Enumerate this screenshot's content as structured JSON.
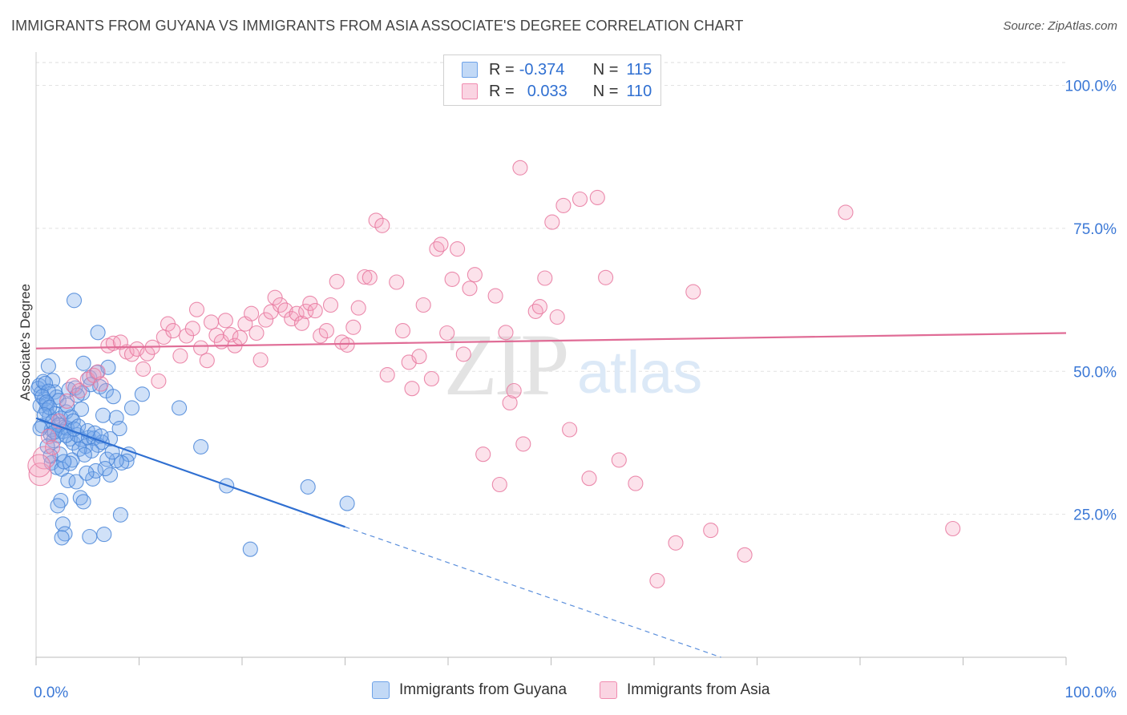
{
  "title": "IMMIGRANTS FROM GUYANA VS IMMIGRANTS FROM ASIA ASSOCIATE'S DEGREE CORRELATION CHART",
  "source": "Source: ZipAtlas.com",
  "watermark": {
    "zip": "ZIP",
    "atlas": "atlas"
  },
  "legend": {
    "rows": [
      {
        "r_label": "R =",
        "r_value": "-0.374",
        "n_label": "N =",
        "n_value": "115",
        "color": "#6fa3e8"
      },
      {
        "r_label": "R =",
        "r_value": "0.033",
        "n_label": "N =",
        "n_value": "110",
        "color": "#f08cb0"
      }
    ]
  },
  "chart_data": {
    "type": "scatter",
    "ylabel": "Associate's Degree",
    "xlabel": "",
    "xlim": [
      0,
      100
    ],
    "ylim": [
      0,
      104
    ],
    "x_tick_labels": [
      "0.0%",
      "100.0%"
    ],
    "y_ticks": [
      25,
      50,
      75,
      100
    ],
    "y_tick_labels": [
      "25.0%",
      "50.0%",
      "75.0%",
      "100.0%"
    ],
    "grid": "horizontal-dashed",
    "legend_position": "top-center",
    "series": [
      {
        "name": "Immigrants from Guyana",
        "color": "#4a86d8",
        "fill": "rgba(120,170,235,0.35)",
        "trend": {
          "x0": 0,
          "y0": 41.8,
          "x1": 30,
          "y1": 22.8,
          "dash_to_x": 66.5,
          "dash_to_y": 0
        },
        "points": [
          [
            0.3,
            47.5
          ],
          [
            0.5,
            46.2
          ],
          [
            0.8,
            45.1
          ],
          [
            0.4,
            44.0
          ],
          [
            1.0,
            43.2
          ],
          [
            1.3,
            42.1
          ],
          [
            0.6,
            40.5
          ],
          [
            1.5,
            39.8
          ],
          [
            0.2,
            47.0
          ],
          [
            0.7,
            48.2
          ],
          [
            1.2,
            50.9
          ],
          [
            1.6,
            48.4
          ],
          [
            1.8,
            46.4
          ],
          [
            2.0,
            45.5
          ],
          [
            2.2,
            44.9
          ],
          [
            1.1,
            44.3
          ],
          [
            1.9,
            42.6
          ],
          [
            2.4,
            41.8
          ],
          [
            2.7,
            40.2
          ],
          [
            1.4,
            39.0
          ],
          [
            1.7,
            37.9
          ],
          [
            2.1,
            38.8
          ],
          [
            2.6,
            39.5
          ],
          [
            3.0,
            40.1
          ],
          [
            3.3,
            38.2
          ],
          [
            3.6,
            37.5
          ],
          [
            4.0,
            38.9
          ],
          [
            4.4,
            38.1
          ],
          [
            4.8,
            36.9
          ],
          [
            5.1,
            38.4
          ],
          [
            3.2,
            46.8
          ],
          [
            3.8,
            47.1
          ],
          [
            4.5,
            46.2
          ],
          [
            4.6,
            51.4
          ],
          [
            5.2,
            48.9
          ],
          [
            5.9,
            49.8
          ],
          [
            6.2,
            47.3
          ],
          [
            6.8,
            46.6
          ],
          [
            7.5,
            45.6
          ],
          [
            7.8,
            41.9
          ],
          [
            6.5,
            42.3
          ],
          [
            8.1,
            40.0
          ],
          [
            7.2,
            38.2
          ],
          [
            5.6,
            38.3
          ],
          [
            6.0,
            37.1
          ],
          [
            6.4,
            37.6
          ],
          [
            5.4,
            36.1
          ],
          [
            4.2,
            36.4
          ],
          [
            3.5,
            34.5
          ],
          [
            2.3,
            35.5
          ],
          [
            1.5,
            34.0
          ],
          [
            2.0,
            33.2
          ],
          [
            2.5,
            32.9
          ],
          [
            3.1,
            30.9
          ],
          [
            3.9,
            30.7
          ],
          [
            4.3,
            27.9
          ],
          [
            4.6,
            27.2
          ],
          [
            2.4,
            27.4
          ],
          [
            2.1,
            26.5
          ],
          [
            2.6,
            23.3
          ],
          [
            2.8,
            21.6
          ],
          [
            2.5,
            20.9
          ],
          [
            5.2,
            21.1
          ],
          [
            6.6,
            21.5
          ],
          [
            8.2,
            24.9
          ],
          [
            9.0,
            35.5
          ],
          [
            8.8,
            34.3
          ],
          [
            8.3,
            34.0
          ],
          [
            7.8,
            34.4
          ],
          [
            7.2,
            31.9
          ],
          [
            5.5,
            31.2
          ],
          [
            6.9,
            34.6
          ],
          [
            7.4,
            35.9
          ],
          [
            9.3,
            43.6
          ],
          [
            10.3,
            46.0
          ],
          [
            7.0,
            50.7
          ],
          [
            6.0,
            56.8
          ],
          [
            3.7,
            62.4
          ],
          [
            13.9,
            43.6
          ],
          [
            16.0,
            36.8
          ],
          [
            18.5,
            30.0
          ],
          [
            20.8,
            18.9
          ],
          [
            26.4,
            29.8
          ],
          [
            30.2,
            26.9
          ],
          [
            0.9,
            47.9
          ],
          [
            1.2,
            46.5
          ],
          [
            0.6,
            45.6
          ],
          [
            1.0,
            44.6
          ],
          [
            1.3,
            43.7
          ],
          [
            0.8,
            42.4
          ],
          [
            1.6,
            41.2
          ],
          [
            0.4,
            40.0
          ],
          [
            2.9,
            42.9
          ],
          [
            3.4,
            42.0
          ],
          [
            3.6,
            41.3
          ],
          [
            2.2,
            40.6
          ],
          [
            1.8,
            39.4
          ],
          [
            2.9,
            38.8
          ],
          [
            3.7,
            39.9
          ],
          [
            4.1,
            40.4
          ],
          [
            5.0,
            39.6
          ],
          [
            5.7,
            39.2
          ],
          [
            6.3,
            38.7
          ],
          [
            4.7,
            35.4
          ],
          [
            3.3,
            33.9
          ],
          [
            5.8,
            32.6
          ],
          [
            6.7,
            33.0
          ],
          [
            4.9,
            32.2
          ],
          [
            1.1,
            36.9
          ],
          [
            1.4,
            35.2
          ],
          [
            2.7,
            34.2
          ],
          [
            3.0,
            44.1
          ],
          [
            4.0,
            45.8
          ],
          [
            5.3,
            47.7
          ],
          [
            4.4,
            43.4
          ]
        ]
      },
      {
        "name": "Immigrants from Asia",
        "color": "#e8789f",
        "fill": "rgba(245,160,190,0.30)",
        "trend": {
          "x0": 0,
          "y0": 54.0,
          "x1": 100,
          "y1": 56.7
        },
        "points": [
          [
            0.4,
            32.0
          ],
          [
            0.8,
            34.9
          ],
          [
            1.2,
            38.6
          ],
          [
            1.6,
            36.7
          ],
          [
            2.2,
            41.3
          ],
          [
            3.0,
            44.8
          ],
          [
            3.6,
            47.5
          ],
          [
            4.2,
            46.6
          ],
          [
            5.0,
            48.6
          ],
          [
            5.6,
            49.3
          ],
          [
            6.0,
            49.9
          ],
          [
            6.3,
            47.8
          ],
          [
            7.0,
            54.5
          ],
          [
            7.5,
            54.9
          ],
          [
            8.2,
            55.1
          ],
          [
            8.8,
            53.4
          ],
          [
            9.3,
            53.0
          ],
          [
            9.8,
            53.9
          ],
          [
            10.4,
            50.4
          ],
          [
            10.8,
            53.1
          ],
          [
            11.3,
            54.2
          ],
          [
            11.9,
            48.3
          ],
          [
            12.4,
            56.0
          ],
          [
            12.8,
            58.3
          ],
          [
            13.3,
            57.1
          ],
          [
            14.0,
            52.7
          ],
          [
            14.6,
            56.2
          ],
          [
            15.2,
            57.5
          ],
          [
            15.6,
            60.8
          ],
          [
            16.0,
            54.1
          ],
          [
            16.6,
            51.9
          ],
          [
            17.0,
            58.6
          ],
          [
            17.5,
            56.3
          ],
          [
            18.0,
            55.2
          ],
          [
            18.4,
            58.9
          ],
          [
            18.9,
            56.4
          ],
          [
            19.3,
            54.5
          ],
          [
            19.8,
            55.9
          ],
          [
            20.3,
            58.3
          ],
          [
            20.9,
            60.1
          ],
          [
            21.4,
            56.7
          ],
          [
            21.8,
            52.0
          ],
          [
            22.3,
            59.0
          ],
          [
            22.8,
            60.4
          ],
          [
            23.2,
            62.9
          ],
          [
            23.7,
            61.6
          ],
          [
            24.2,
            60.7
          ],
          [
            24.8,
            59.2
          ],
          [
            25.3,
            60.1
          ],
          [
            25.8,
            58.4
          ],
          [
            26.2,
            60.5
          ],
          [
            26.6,
            61.9
          ],
          [
            27.1,
            60.6
          ],
          [
            27.6,
            56.2
          ],
          [
            28.2,
            57.1
          ],
          [
            28.6,
            61.6
          ],
          [
            29.2,
            65.7
          ],
          [
            29.7,
            55.1
          ],
          [
            30.2,
            54.6
          ],
          [
            30.8,
            57.7
          ],
          [
            31.3,
            61.1
          ],
          [
            31.9,
            66.5
          ],
          [
            32.4,
            66.4
          ],
          [
            33.0,
            76.4
          ],
          [
            33.6,
            75.5
          ],
          [
            34.1,
            49.4
          ],
          [
            35.0,
            65.6
          ],
          [
            35.6,
            57.1
          ],
          [
            36.2,
            51.6
          ],
          [
            36.5,
            47.0
          ],
          [
            37.2,
            52.6
          ],
          [
            37.6,
            61.6
          ],
          [
            38.4,
            48.7
          ],
          [
            38.9,
            71.4
          ],
          [
            39.3,
            72.2
          ],
          [
            39.9,
            56.7
          ],
          [
            40.4,
            66.1
          ],
          [
            40.9,
            71.4
          ],
          [
            41.5,
            53.0
          ],
          [
            42.1,
            64.5
          ],
          [
            42.6,
            66.9
          ],
          [
            43.4,
            35.5
          ],
          [
            44.6,
            63.2
          ],
          [
            45.0,
            30.2
          ],
          [
            45.6,
            56.8
          ],
          [
            46.0,
            44.5
          ],
          [
            46.4,
            46.6
          ],
          [
            47.0,
            85.6
          ],
          [
            47.3,
            37.3
          ],
          [
            48.5,
            60.5
          ],
          [
            48.9,
            61.3
          ],
          [
            49.4,
            66.3
          ],
          [
            50.1,
            76.1
          ],
          [
            50.6,
            59.5
          ],
          [
            51.2,
            79.0
          ],
          [
            51.8,
            39.8
          ],
          [
            52.8,
            80.1
          ],
          [
            53.7,
            31.3
          ],
          [
            54.5,
            80.4
          ],
          [
            55.3,
            66.4
          ],
          [
            56.6,
            34.5
          ],
          [
            58.2,
            30.4
          ],
          [
            60.3,
            13.4
          ],
          [
            62.1,
            20.0
          ],
          [
            63.8,
            63.9
          ],
          [
            65.5,
            22.2
          ],
          [
            68.8,
            17.9
          ],
          [
            78.6,
            77.8
          ],
          [
            89.0,
            22.5
          ],
          [
            0.3,
            33.5
          ]
        ]
      }
    ]
  }
}
